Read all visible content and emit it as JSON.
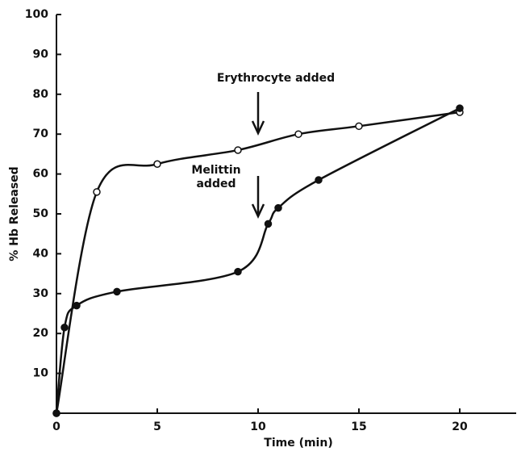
{
  "chart_data": {
    "type": "line",
    "xlabel": "Time  (min)",
    "ylabel": "% Hb Released",
    "xlim": [
      0,
      22.8
    ],
    "xticks": [
      0,
      5,
      10,
      15,
      20
    ],
    "ylim": [
      0,
      100
    ],
    "yticks": [
      10,
      20,
      30,
      40,
      50,
      60,
      70,
      80,
      90,
      100
    ],
    "series": [
      {
        "color": "#111111",
        "marker": "open",
        "x": [
          0,
          2,
          5,
          9,
          12,
          15,
          20
        ],
        "values": [
          0,
          55.5,
          62.5,
          66,
          70,
          72,
          75.5
        ]
      },
      {
        "color": "#111111",
        "marker": "filled",
        "x": [
          0,
          0.4,
          1,
          3,
          9,
          10.5,
          11,
          13,
          20
        ],
        "values": [
          0,
          21.5,
          27,
          30.5,
          35.5,
          47.5,
          51.5,
          58.5,
          76.5
        ]
      }
    ],
    "annotations": [
      "Erythrocyte added",
      "Melittin",
      "added"
    ]
  }
}
